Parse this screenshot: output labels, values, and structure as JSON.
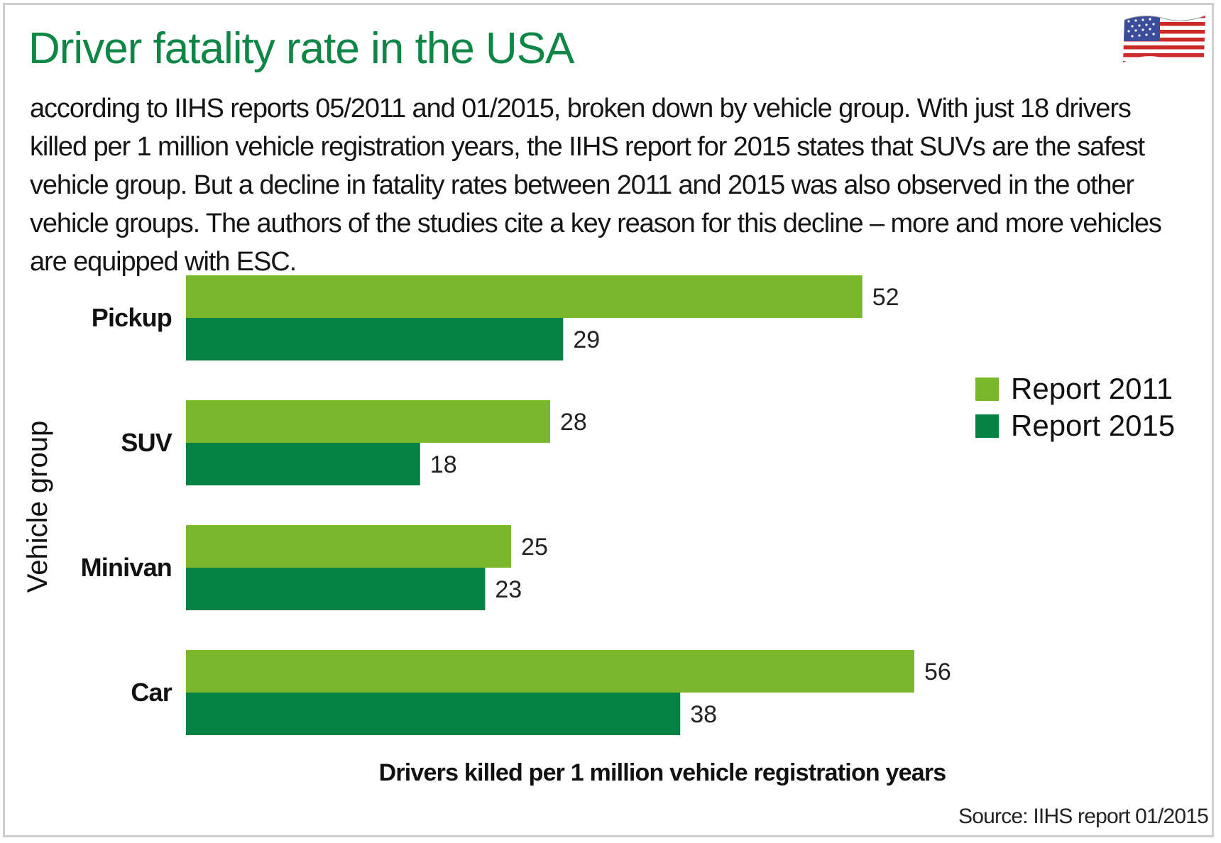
{
  "header": {
    "title": "Driver fatality rate in the USA",
    "description": "according to IIHS reports 05/2011 and 01/2015, broken down by vehicle group. With just 18 drivers killed per 1 million vehicle registration years, the IIHS report for 2015 states that SUVs are the safest vehicle group. But a decline in fatality rates between 2011 and 2015 was also observed in the other vehicle groups. The authors of the studies cite a key reason for this decline – more and more vehicles are equipped with ESC."
  },
  "flag": {
    "icon": "us-flag-icon"
  },
  "source": "Source: IIHS report 01/2015",
  "colors": {
    "title": "#0e8746",
    "report_2011": "#78b82a",
    "report_2015": "#058241"
  },
  "chart_data": {
    "type": "bar",
    "orientation": "horizontal",
    "categories": [
      "Pickup",
      "SUV",
      "Minivan",
      "Car"
    ],
    "series": [
      {
        "name": "Report 2011",
        "values": [
          52,
          28,
          25,
          56
        ]
      },
      {
        "name": "Report 2015",
        "values": [
          29,
          18,
          23,
          38
        ]
      }
    ],
    "xlabel": "Drivers killed per 1 million vehicle registration years",
    "ylabel": "Vehicle group",
    "xlim": [
      0,
      56
    ],
    "grid": false,
    "legend": "right"
  }
}
